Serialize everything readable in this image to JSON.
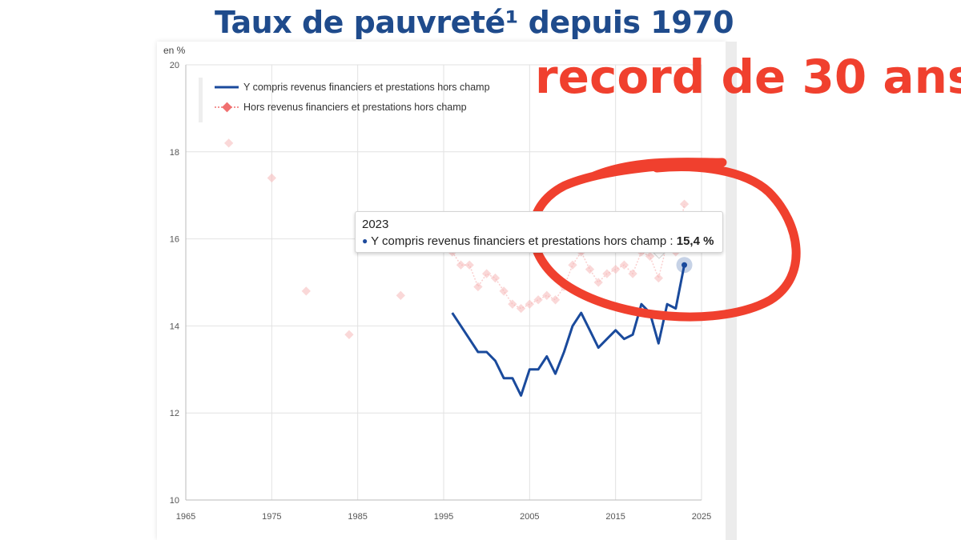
{
  "page": {
    "title": "Taux de pauvreté¹ depuis 1970",
    "annotation": "record de 30 ans",
    "colors": {
      "title": "#1f4b8c",
      "annotation": "#f0402e",
      "series1": "#1a4a9c",
      "series2": "#f07070"
    }
  },
  "tooltip": {
    "year": "2023",
    "series": "Y compris revenus financiers et prestations hors champ",
    "separator": " : ",
    "value": "15,4 %"
  },
  "chart_data": {
    "type": "line",
    "ylabel": "en %",
    "xlim": [
      1965,
      2025
    ],
    "ylim": [
      10,
      20
    ],
    "x_ticks": [
      "1965",
      "1975",
      "1985",
      "1995",
      "2005",
      "2015",
      "2025"
    ],
    "y_ticks": [
      "10",
      "12",
      "14",
      "16",
      "18",
      "20"
    ],
    "grid": true,
    "legend": "top-left",
    "series": [
      {
        "name": "Y compris revenus financiers et prestations hors champ",
        "style": "solid",
        "x": [
          1996,
          1997,
          1998,
          1999,
          2000,
          2001,
          2002,
          2003,
          2004,
          2005,
          2006,
          2007,
          2008,
          2009,
          2010,
          2011,
          2012,
          2013,
          2014,
          2015,
          2016,
          2017,
          2018,
          2019,
          2020,
          2021,
          2022,
          2023
        ],
        "y": [
          14.3,
          14.0,
          13.7,
          13.4,
          13.4,
          13.2,
          12.8,
          12.8,
          12.4,
          13.0,
          13.0,
          13.3,
          12.9,
          13.4,
          14.0,
          14.3,
          13.9,
          13.5,
          13.7,
          13.9,
          13.7,
          13.8,
          14.5,
          14.3,
          13.6,
          14.5,
          14.4,
          15.4
        ]
      },
      {
        "name": "Hors revenus financiers et prestations hors champ",
        "style": "dotted-diamond",
        "x": [
          1970,
          1975,
          1979,
          1984,
          1990,
          1996,
          1997,
          1998,
          1999,
          2000,
          2001,
          2002,
          2003,
          2004,
          2005,
          2006,
          2007,
          2008,
          2009,
          2010,
          2011,
          2012,
          2013,
          2014,
          2015,
          2016,
          2017,
          2018,
          2019,
          2020,
          2021,
          2022,
          2023
        ],
        "y": [
          18.2,
          17.4,
          14.8,
          13.8,
          14.7,
          15.7,
          15.4,
          15.4,
          14.9,
          15.2,
          15.1,
          14.8,
          14.5,
          14.4,
          14.5,
          14.6,
          14.7,
          14.6,
          14.9,
          15.4,
          15.7,
          15.3,
          15.0,
          15.2,
          15.3,
          15.4,
          15.2,
          15.7,
          15.6,
          15.1,
          15.9,
          15.7,
          16.8
        ]
      }
    ],
    "highlight": {
      "x": 2023,
      "y": 15.4
    }
  }
}
